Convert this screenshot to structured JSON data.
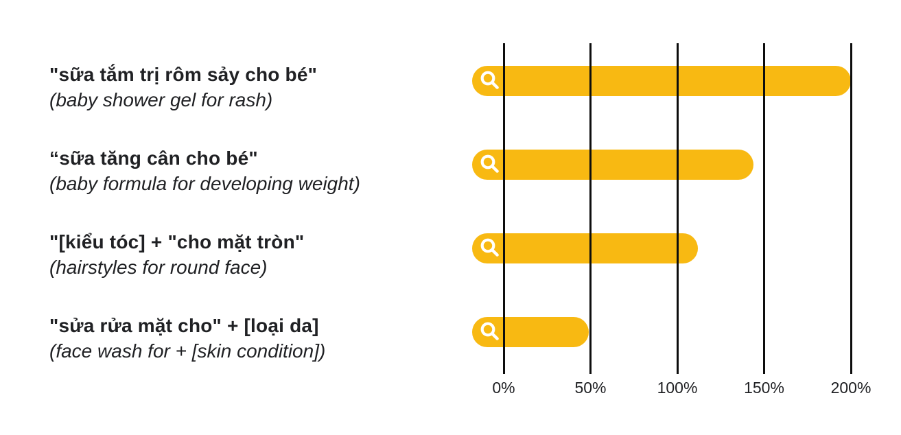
{
  "page": {
    "background": "#ffffff",
    "text_color": "#202124"
  },
  "chart_data": {
    "type": "bar",
    "orientation": "horizontal",
    "title": "",
    "xlabel": "",
    "ylabel": "",
    "unit": "%",
    "xlim": [
      0,
      200
    ],
    "x_tick_values": [
      0,
      50,
      100,
      150,
      200
    ],
    "x_tick_labels": [
      "0%",
      "50%",
      "100%",
      "150%",
      "200%"
    ],
    "grid": "vertical black gridlines drawn over bars",
    "legend": "none",
    "bar_color": "#F8B912",
    "bar_icon": "search-icon",
    "rows": [
      {
        "query_vi": "\"sữa tắm trị rôm sảy cho bé\"",
        "translation_en": "(baby shower gel for rash)",
        "value_pct": 200
      },
      {
        "query_vi": "“sữa tăng cân cho bé\"",
        "translation_en": "(baby formula for developing weight)",
        "value_pct": 144
      },
      {
        "query_vi": "\"[kiểu tóc] + \"cho mặt tròn\"",
        "translation_en": "(hairstyles for round face)",
        "value_pct": 112
      },
      {
        "query_vi": "\"sửa rửa mặt cho\" + [loại da]",
        "translation_en": "(face wash for + [skin condition])",
        "value_pct": 49
      }
    ]
  }
}
